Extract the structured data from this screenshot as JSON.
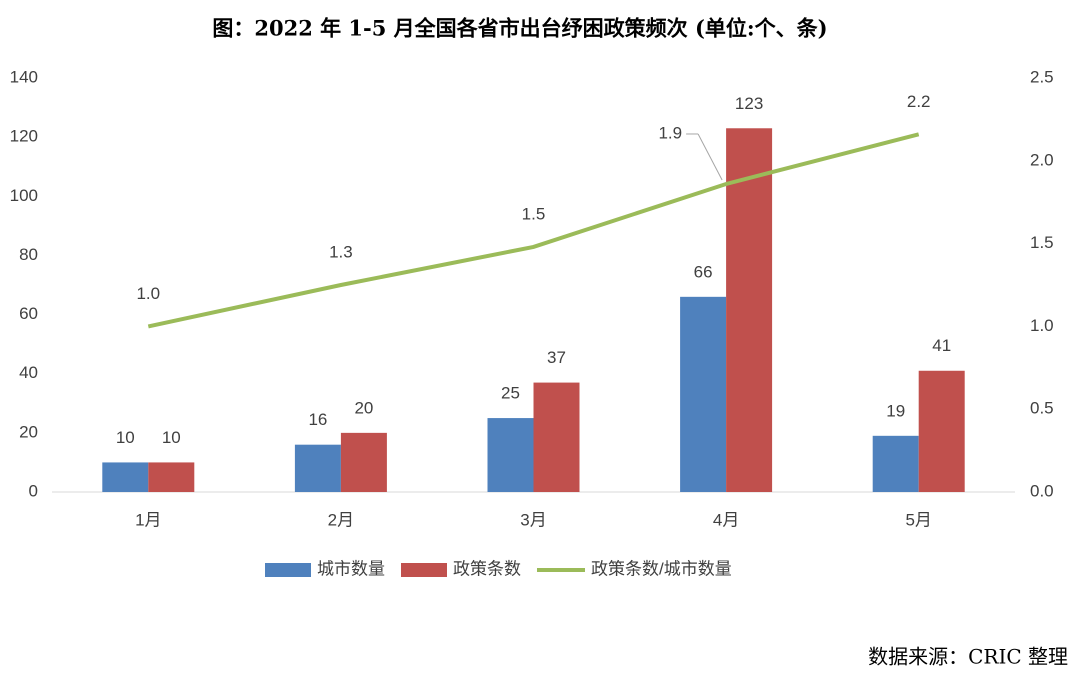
{
  "chart_data": {
    "type": "bar",
    "title": "图：2022 年 1-5 月全国各省市出台纾困政策频次 (单位:个、条)",
    "source": "数据来源：CRIC 整理",
    "categories": [
      "1月",
      "2月",
      "3月",
      "4月",
      "5月"
    ],
    "series": [
      {
        "name": "城市数量",
        "color": "#4f81bd",
        "type": "bar",
        "values": [
          10,
          16,
          25,
          66,
          19
        ]
      },
      {
        "name": "政策条数",
        "color": "#c0504d",
        "type": "bar",
        "values": [
          10,
          20,
          37,
          123,
          41
        ]
      },
      {
        "name": "政策条数/城市数量",
        "color": "#9bbb59",
        "type": "line",
        "axis": "y2",
        "values": [
          1,
          1.25,
          1.48,
          1.86,
          2.16
        ],
        "value_labels": [
          "1.0",
          "1.3",
          "1.5",
          "1.9",
          "2.2"
        ]
      }
    ],
    "ylim": [
      0,
      140
    ],
    "yticks": [
      0,
      20,
      40,
      60,
      80,
      100,
      120,
      140
    ],
    "y2lim": [
      0,
      2.5
    ],
    "y2ticks": [
      {
        "value": 0,
        "label": "0.0"
      },
      {
        "value": 0.5,
        "label": "0.5"
      },
      {
        "value": 1,
        "label": "1.0"
      },
      {
        "value": 1.5,
        "label": "1.5"
      },
      {
        "value": 2,
        "label": "2.0"
      },
      {
        "value": 2.5,
        "label": "2.5"
      }
    ],
    "legend": "bottom"
  }
}
